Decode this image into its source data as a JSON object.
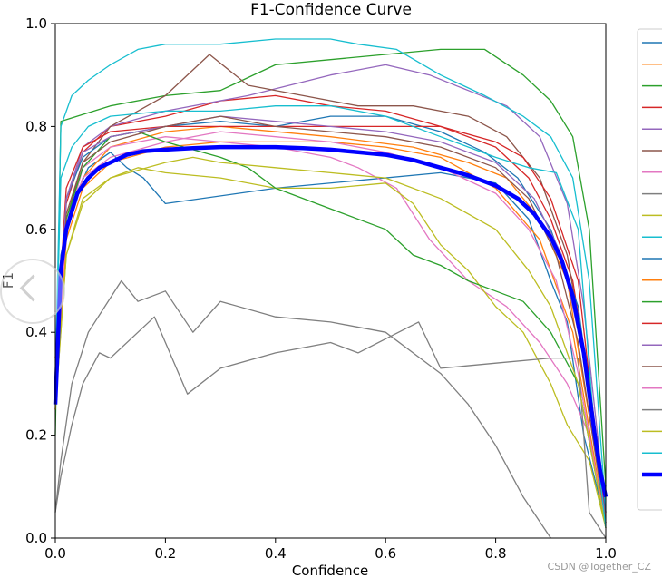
{
  "chart_data": {
    "type": "line",
    "title": "F1-Confidence Curve",
    "xlabel": "Confidence",
    "ylabel": "F1",
    "xlim": [
      0,
      1
    ],
    "ylim": [
      0,
      1
    ],
    "xticks": [
      "0.0",
      "0.2",
      "0.4",
      "0.6",
      "0.8",
      "1.0"
    ],
    "yticks": [
      "0.0",
      "0.2",
      "0.4",
      "0.6",
      "0.8",
      "1.0"
    ],
    "grid": false,
    "legend_position": "right",
    "series": [
      {
        "color": "#1f77b4",
        "x": [
          0,
          0.01,
          0.03,
          0.06,
          0.1,
          0.13,
          0.16,
          0.2,
          0.4,
          0.7,
          0.8,
          0.86,
          0.9,
          0.93,
          0.96,
          1.0
        ],
        "y": [
          0.3,
          0.55,
          0.65,
          0.72,
          0.75,
          0.72,
          0.7,
          0.65,
          0.68,
          0.71,
          0.69,
          0.62,
          0.5,
          0.42,
          0.2,
          0.03
        ]
      },
      {
        "color": "#ff7f0e",
        "x": [
          0,
          0.02,
          0.05,
          0.1,
          0.2,
          0.3,
          0.5,
          0.65,
          0.75,
          0.82,
          0.88,
          0.93,
          0.96,
          1.0
        ],
        "y": [
          0.35,
          0.6,
          0.7,
          0.76,
          0.79,
          0.8,
          0.78,
          0.76,
          0.73,
          0.7,
          0.62,
          0.5,
          0.3,
          0.05
        ]
      },
      {
        "color": "#2ca02c",
        "x": [
          0,
          0.01,
          0.1,
          0.2,
          0.3,
          0.4,
          0.5,
          0.6,
          0.7,
          0.78,
          0.85,
          0.9,
          0.94,
          0.97,
          1.0
        ],
        "y": [
          0.2,
          0.81,
          0.84,
          0.86,
          0.87,
          0.92,
          0.93,
          0.94,
          0.95,
          0.95,
          0.9,
          0.85,
          0.78,
          0.6,
          0.1
        ]
      },
      {
        "color": "#d62728",
        "x": [
          0,
          0.02,
          0.05,
          0.1,
          0.2,
          0.3,
          0.4,
          0.5,
          0.6,
          0.7,
          0.8,
          0.86,
          0.9,
          0.94,
          0.97,
          1.0
        ],
        "y": [
          0.3,
          0.65,
          0.75,
          0.8,
          0.82,
          0.85,
          0.86,
          0.84,
          0.83,
          0.8,
          0.76,
          0.7,
          0.62,
          0.5,
          0.3,
          0.05
        ]
      },
      {
        "color": "#9467bd",
        "x": [
          0,
          0.02,
          0.05,
          0.1,
          0.2,
          0.35,
          0.5,
          0.6,
          0.68,
          0.75,
          0.82,
          0.88,
          0.93,
          0.96,
          1.0
        ],
        "y": [
          0.3,
          0.66,
          0.76,
          0.8,
          0.83,
          0.86,
          0.9,
          0.92,
          0.9,
          0.87,
          0.84,
          0.78,
          0.65,
          0.45,
          0.05
        ]
      },
      {
        "color": "#8c564b",
        "x": [
          0,
          0.02,
          0.05,
          0.1,
          0.2,
          0.28,
          0.35,
          0.45,
          0.55,
          0.65,
          0.75,
          0.82,
          0.88,
          0.93,
          0.97,
          1.0
        ],
        "y": [
          0.3,
          0.62,
          0.73,
          0.8,
          0.86,
          0.94,
          0.88,
          0.86,
          0.84,
          0.84,
          0.82,
          0.78,
          0.7,
          0.55,
          0.3,
          0.05
        ]
      },
      {
        "color": "#e377c2",
        "x": [
          0,
          0.02,
          0.05,
          0.1,
          0.2,
          0.3,
          0.4,
          0.5,
          0.55,
          0.62,
          0.68,
          0.75,
          0.82,
          0.88,
          0.93,
          0.97,
          1.0
        ],
        "y": [
          0.3,
          0.6,
          0.72,
          0.76,
          0.78,
          0.77,
          0.76,
          0.74,
          0.72,
          0.68,
          0.58,
          0.5,
          0.45,
          0.38,
          0.3,
          0.2,
          0.03
        ]
      },
      {
        "color": "#7f7f7f",
        "x": [
          0,
          0.01,
          0.03,
          0.06,
          0.09,
          0.12,
          0.15,
          0.2,
          0.25,
          0.3,
          0.4,
          0.5,
          0.6,
          0.7,
          0.75,
          0.8,
          0.85,
          0.9
        ],
        "y": [
          0.05,
          0.15,
          0.3,
          0.4,
          0.45,
          0.5,
          0.46,
          0.48,
          0.4,
          0.46,
          0.43,
          0.42,
          0.4,
          0.32,
          0.26,
          0.18,
          0.08,
          0.0
        ]
      },
      {
        "color": "#bcbd22",
        "x": [
          0,
          0.02,
          0.05,
          0.1,
          0.15,
          0.2,
          0.3,
          0.4,
          0.5,
          0.6,
          0.65,
          0.7,
          0.75,
          0.8,
          0.85,
          0.9,
          0.93,
          0.97,
          1.0
        ],
        "y": [
          0.25,
          0.55,
          0.66,
          0.7,
          0.72,
          0.71,
          0.7,
          0.68,
          0.68,
          0.69,
          0.65,
          0.57,
          0.52,
          0.45,
          0.4,
          0.3,
          0.22,
          0.15,
          0.02
        ]
      },
      {
        "color": "#17becf",
        "x": [
          0,
          0.01,
          0.03,
          0.06,
          0.1,
          0.15,
          0.2,
          0.3,
          0.4,
          0.5,
          0.55,
          0.62,
          0.7,
          0.78,
          0.85,
          0.9,
          0.94,
          0.97,
          1.0
        ],
        "y": [
          0.3,
          0.8,
          0.86,
          0.89,
          0.92,
          0.95,
          0.96,
          0.96,
          0.97,
          0.97,
          0.96,
          0.95,
          0.9,
          0.86,
          0.82,
          0.78,
          0.7,
          0.5,
          0.05
        ]
      },
      {
        "color": "#1f77b4",
        "x": [
          0,
          0.02,
          0.05,
          0.1,
          0.2,
          0.3,
          0.4,
          0.5,
          0.6,
          0.7,
          0.78,
          0.84,
          0.9,
          0.95,
          1.0
        ],
        "y": [
          0.3,
          0.66,
          0.74,
          0.78,
          0.8,
          0.81,
          0.8,
          0.82,
          0.82,
          0.79,
          0.75,
          0.7,
          0.6,
          0.45,
          0.05
        ]
      },
      {
        "color": "#ff7f0e",
        "x": [
          0,
          0.02,
          0.05,
          0.1,
          0.2,
          0.3,
          0.4,
          0.5,
          0.6,
          0.7,
          0.8,
          0.88,
          0.94,
          0.98,
          1.0
        ],
        "y": [
          0.25,
          0.58,
          0.68,
          0.73,
          0.76,
          0.77,
          0.77,
          0.77,
          0.76,
          0.74,
          0.68,
          0.58,
          0.4,
          0.15,
          0.02
        ]
      },
      {
        "color": "#2ca02c",
        "x": [
          0,
          0.02,
          0.05,
          0.1,
          0.15,
          0.2,
          0.3,
          0.35,
          0.4,
          0.5,
          0.6,
          0.65,
          0.7,
          0.75,
          0.8,
          0.85,
          0.9,
          0.95,
          1.0
        ],
        "y": [
          0.3,
          0.62,
          0.72,
          0.78,
          0.79,
          0.77,
          0.74,
          0.72,
          0.68,
          0.64,
          0.6,
          0.55,
          0.53,
          0.5,
          0.48,
          0.46,
          0.4,
          0.3,
          0.02
        ]
      },
      {
        "color": "#d62728",
        "x": [
          0,
          0.02,
          0.05,
          0.1,
          0.2,
          0.3,
          0.4,
          0.5,
          0.6,
          0.7,
          0.8,
          0.85,
          0.9,
          0.95,
          1.0
        ],
        "y": [
          0.35,
          0.68,
          0.76,
          0.79,
          0.8,
          0.8,
          0.8,
          0.8,
          0.8,
          0.8,
          0.77,
          0.74,
          0.66,
          0.5,
          0.03
        ]
      },
      {
        "color": "#9467bd",
        "x": [
          0,
          0.02,
          0.05,
          0.1,
          0.2,
          0.3,
          0.4,
          0.5,
          0.6,
          0.7,
          0.8,
          0.87,
          0.92,
          0.96,
          1.0
        ],
        "y": [
          0.32,
          0.66,
          0.75,
          0.78,
          0.8,
          0.82,
          0.81,
          0.8,
          0.79,
          0.77,
          0.73,
          0.66,
          0.55,
          0.35,
          0.03
        ]
      },
      {
        "color": "#8c564b",
        "x": [
          0,
          0.02,
          0.05,
          0.1,
          0.2,
          0.3,
          0.4,
          0.5,
          0.6,
          0.7,
          0.8,
          0.86,
          0.91,
          0.95,
          1.0
        ],
        "y": [
          0.3,
          0.63,
          0.73,
          0.77,
          0.8,
          0.82,
          0.8,
          0.79,
          0.78,
          0.76,
          0.72,
          0.66,
          0.55,
          0.38,
          0.03
        ]
      },
      {
        "color": "#e377c2",
        "x": [
          0,
          0.02,
          0.05,
          0.1,
          0.2,
          0.3,
          0.4,
          0.5,
          0.6,
          0.7,
          0.8,
          0.86,
          0.91,
          0.95,
          1.0
        ],
        "y": [
          0.28,
          0.6,
          0.7,
          0.74,
          0.77,
          0.79,
          0.78,
          0.77,
          0.75,
          0.72,
          0.67,
          0.6,
          0.5,
          0.32,
          0.02
        ]
      },
      {
        "color": "#7f7f7f",
        "x": [
          0,
          0.01,
          0.03,
          0.05,
          0.08,
          0.1,
          0.15,
          0.18,
          0.2,
          0.24,
          0.3,
          0.4,
          0.5,
          0.55,
          0.66,
          0.7,
          0.8,
          0.9,
          0.95,
          0.97,
          1.0
        ],
        "y": [
          0.05,
          0.12,
          0.22,
          0.3,
          0.36,
          0.35,
          0.4,
          0.43,
          0.38,
          0.28,
          0.33,
          0.36,
          0.38,
          0.36,
          0.42,
          0.33,
          0.34,
          0.35,
          0.35,
          0.05,
          0.0
        ]
      },
      {
        "color": "#bcbd22",
        "x": [
          0,
          0.02,
          0.05,
          0.1,
          0.2,
          0.25,
          0.3,
          0.4,
          0.5,
          0.6,
          0.7,
          0.8,
          0.86,
          0.9,
          0.95,
          1.0
        ],
        "y": [
          0.25,
          0.55,
          0.65,
          0.7,
          0.73,
          0.74,
          0.73,
          0.72,
          0.71,
          0.7,
          0.66,
          0.6,
          0.52,
          0.45,
          0.3,
          0.02
        ]
      },
      {
        "color": "#17becf",
        "x": [
          0,
          0.01,
          0.03,
          0.06,
          0.1,
          0.2,
          0.3,
          0.4,
          0.5,
          0.6,
          0.7,
          0.8,
          0.86,
          0.91,
          0.95,
          0.98,
          1.0
        ],
        "y": [
          0.3,
          0.7,
          0.76,
          0.8,
          0.82,
          0.83,
          0.83,
          0.84,
          0.84,
          0.82,
          0.78,
          0.74,
          0.72,
          0.71,
          0.6,
          0.2,
          0.02
        ]
      },
      {
        "color": "#0000ff",
        "bold": true,
        "x": [
          0,
          0.01,
          0.02,
          0.04,
          0.06,
          0.08,
          0.1,
          0.13,
          0.16,
          0.2,
          0.25,
          0.3,
          0.35,
          0.4,
          0.45,
          0.5,
          0.55,
          0.6,
          0.65,
          0.7,
          0.75,
          0.8,
          0.84,
          0.87,
          0.9,
          0.92,
          0.94,
          0.96,
          0.97,
          0.98,
          0.99,
          1.0
        ],
        "y": [
          0.26,
          0.52,
          0.6,
          0.67,
          0.7,
          0.72,
          0.73,
          0.745,
          0.752,
          0.755,
          0.758,
          0.76,
          0.76,
          0.76,
          0.758,
          0.755,
          0.75,
          0.745,
          0.735,
          0.72,
          0.705,
          0.685,
          0.66,
          0.63,
          0.585,
          0.54,
          0.47,
          0.36,
          0.28,
          0.2,
          0.13,
          0.08
        ]
      }
    ]
  },
  "footer": {
    "watermark": "CSDN @Together_CZ"
  }
}
